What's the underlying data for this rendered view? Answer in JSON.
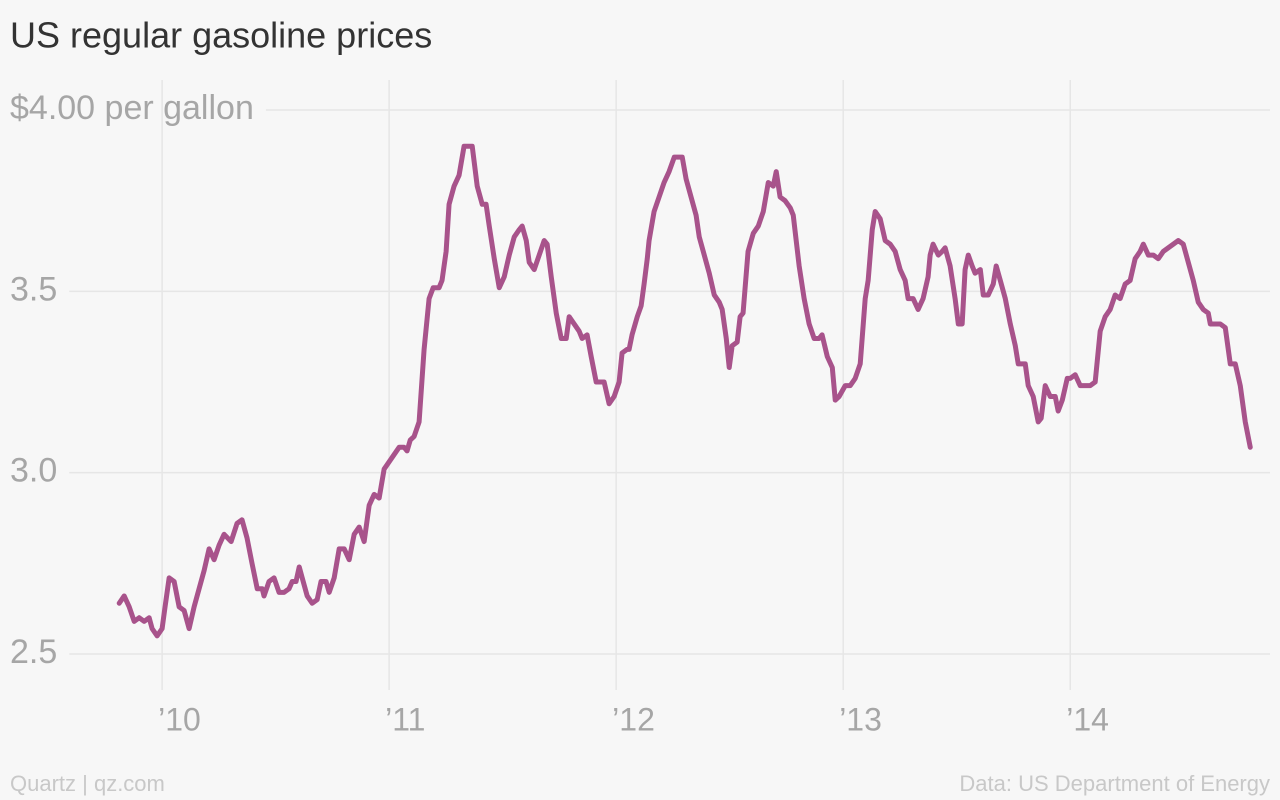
{
  "chart_data": {
    "type": "line",
    "title": "US regular gasoline prices",
    "credit": "Quartz | qz.com",
    "source": "Data: US Department of Energy",
    "color": "#a8538b",
    "grid": true,
    "xlim": [
      2009.33,
      2014.88
    ],
    "ylim": [
      2.5,
      4.0
    ],
    "xticks": [
      {
        "value": 2010,
        "label": "’10"
      },
      {
        "value": 2011,
        "label": "’11"
      },
      {
        "value": 2012,
        "label": "’12"
      },
      {
        "value": 2013,
        "label": "’13"
      },
      {
        "value": 2014,
        "label": "’14"
      }
    ],
    "yticks": [
      2.5,
      {
        "value": 3,
        "label": "3.0"
      },
      3.5,
      {
        "value": 4,
        "label": "$4.00 per gallon"
      }
    ],
    "x": [
      2009.811,
      2009.833,
      2009.855,
      2009.877,
      2009.899,
      2009.921,
      2009.943,
      2009.956,
      2009.978,
      2010.0,
      2010.013,
      2010.031,
      2010.053,
      2010.075,
      2010.097,
      2010.119,
      2010.141,
      2010.163,
      2010.185,
      2010.207,
      2010.229,
      2010.251,
      2010.273,
      2010.304,
      2010.33,
      2010.352,
      2010.374,
      2010.396,
      2010.419,
      2010.441,
      2010.449,
      2010.471,
      2010.493,
      2010.515,
      2010.537,
      2010.559,
      2010.573,
      2010.59,
      2010.604,
      2010.617,
      2010.639,
      2010.661,
      2010.683,
      2010.7,
      2010.722,
      2010.736,
      2010.758,
      2010.78,
      2010.802,
      2010.824,
      2010.846,
      2010.868,
      2010.89,
      2010.912,
      2010.934,
      2010.956,
      2010.978,
      2011.0,
      2011.022,
      2011.044,
      2011.066,
      2011.079,
      2011.093,
      2011.11,
      2011.132,
      2011.154,
      2011.176,
      2011.194,
      2011.22,
      2011.233,
      2011.251,
      2011.264,
      2011.286,
      2011.308,
      2011.33,
      2011.352,
      2011.366,
      2011.388,
      2011.41,
      2011.427,
      2011.441,
      2011.463,
      2011.485,
      2011.507,
      2011.529,
      2011.551,
      2011.573,
      2011.586,
      2011.604,
      2011.617,
      2011.639,
      2011.661,
      2011.683,
      2011.696,
      2011.714,
      2011.736,
      2011.758,
      2011.78,
      2011.793,
      2011.815,
      2011.837,
      2011.85,
      2011.872,
      2011.89,
      2011.912,
      2011.934,
      2011.947,
      2011.969,
      2011.991,
      2012.013,
      2012.026,
      2012.048,
      2012.057,
      2012.07,
      2012.093,
      2012.11,
      2012.123,
      2012.137,
      2012.145,
      2012.167,
      2012.189,
      2012.211,
      2012.233,
      2012.256,
      2012.278,
      2012.291,
      2012.308,
      2012.33,
      2012.352,
      2012.366,
      2012.388,
      2012.41,
      2012.432,
      2012.454,
      2012.467,
      2012.485,
      2012.498,
      2012.511,
      2012.533,
      2012.546,
      2012.559,
      2012.581,
      2012.604,
      2012.626,
      2012.648,
      2012.67,
      2012.692,
      2012.705,
      2012.722,
      2012.744,
      2012.767,
      2012.78,
      2012.806,
      2012.828,
      2012.85,
      2012.872,
      2012.894,
      2012.907,
      2012.93,
      2012.952,
      2012.965,
      2012.982,
      2013.009,
      2013.031,
      2013.053,
      2013.075,
      2013.097,
      2013.11,
      2013.128,
      2013.141,
      2013.163,
      2013.185,
      2013.207,
      2013.229,
      2013.251,
      2013.273,
      2013.286,
      2013.308,
      2013.33,
      2013.352,
      2013.374,
      2013.383,
      2013.396,
      2013.419,
      2013.436,
      2013.449,
      2013.471,
      2013.493,
      2013.507,
      2013.524,
      2013.537,
      2013.551,
      2013.568,
      2013.581,
      2013.604,
      2013.617,
      2013.639,
      2013.661,
      2013.674,
      2013.692,
      2013.714,
      2013.736,
      2013.758,
      2013.771,
      2013.793,
      2013.802,
      2013.815,
      2013.837,
      2013.859,
      2013.872,
      2013.89,
      2013.912,
      2013.934,
      2013.947,
      2013.965,
      2013.987,
      2014.0,
      2014.022,
      2014.044,
      2014.066,
      2014.088,
      2014.11,
      2014.132,
      2014.154,
      2014.176,
      2014.198,
      2014.22,
      2014.242,
      2014.264,
      2014.286,
      2014.308,
      2014.322,
      2014.344,
      2014.366,
      2014.388,
      2014.41,
      2014.432,
      2014.454,
      2014.476,
      2014.498,
      2014.52,
      2014.542,
      2014.564,
      2014.586,
      2014.608,
      2014.617,
      2014.639,
      2014.661,
      2014.683,
      2014.705,
      2014.727,
      2014.749,
      2014.771,
      2014.793
    ],
    "values": [
      2.64,
      2.66,
      2.63,
      2.59,
      2.6,
      2.59,
      2.6,
      2.57,
      2.55,
      2.57,
      2.63,
      2.71,
      2.7,
      2.63,
      2.62,
      2.57,
      2.63,
      2.68,
      2.73,
      2.79,
      2.76,
      2.8,
      2.83,
      2.81,
      2.86,
      2.87,
      2.82,
      2.75,
      2.68,
      2.68,
      2.66,
      2.7,
      2.71,
      2.67,
      2.67,
      2.68,
      2.7,
      2.7,
      2.74,
      2.71,
      2.66,
      2.64,
      2.65,
      2.7,
      2.7,
      2.67,
      2.71,
      2.79,
      2.79,
      2.76,
      2.83,
      2.85,
      2.81,
      2.91,
      2.94,
      2.93,
      3.01,
      3.03,
      3.05,
      3.07,
      3.07,
      3.06,
      3.09,
      3.1,
      3.14,
      3.34,
      3.48,
      3.51,
      3.51,
      3.53,
      3.61,
      3.74,
      3.79,
      3.82,
      3.9,
      3.9,
      3.9,
      3.79,
      3.74,
      3.74,
      3.68,
      3.59,
      3.51,
      3.54,
      3.6,
      3.65,
      3.67,
      3.68,
      3.64,
      3.58,
      3.56,
      3.6,
      3.64,
      3.63,
      3.54,
      3.44,
      3.37,
      3.37,
      3.43,
      3.41,
      3.39,
      3.37,
      3.38,
      3.32,
      3.25,
      3.25,
      3.25,
      3.19,
      3.21,
      3.25,
      3.33,
      3.34,
      3.34,
      3.38,
      3.43,
      3.46,
      3.52,
      3.59,
      3.64,
      3.72,
      3.76,
      3.8,
      3.83,
      3.87,
      3.87,
      3.87,
      3.81,
      3.76,
      3.71,
      3.65,
      3.6,
      3.55,
      3.49,
      3.47,
      3.45,
      3.37,
      3.29,
      3.35,
      3.36,
      3.43,
      3.44,
      3.61,
      3.66,
      3.68,
      3.72,
      3.8,
      3.79,
      3.83,
      3.76,
      3.75,
      3.73,
      3.71,
      3.57,
      3.48,
      3.41,
      3.37,
      3.37,
      3.38,
      3.32,
      3.29,
      3.2,
      3.21,
      3.24,
      3.24,
      3.26,
      3.3,
      3.48,
      3.53,
      3.67,
      3.72,
      3.7,
      3.64,
      3.63,
      3.61,
      3.56,
      3.53,
      3.48,
      3.48,
      3.45,
      3.48,
      3.54,
      3.6,
      3.63,
      3.6,
      3.61,
      3.62,
      3.57,
      3.48,
      3.41,
      3.41,
      3.56,
      3.6,
      3.57,
      3.55,
      3.56,
      3.49,
      3.49,
      3.52,
      3.57,
      3.53,
      3.48,
      3.41,
      3.35,
      3.3,
      3.3,
      3.3,
      3.24,
      3.21,
      3.14,
      3.15,
      3.24,
      3.21,
      3.21,
      3.17,
      3.2,
      3.26,
      3.26,
      3.27,
      3.24,
      3.24,
      3.24,
      3.25,
      3.39,
      3.43,
      3.45,
      3.49,
      3.48,
      3.52,
      3.53,
      3.59,
      3.61,
      3.63,
      3.6,
      3.6,
      3.59,
      3.61,
      3.62,
      3.63,
      3.64,
      3.63,
      3.58,
      3.53,
      3.47,
      3.45,
      3.44,
      3.41,
      3.41,
      3.41,
      3.4,
      3.3,
      3.3,
      3.24,
      3.14,
      3.07
    ]
  }
}
